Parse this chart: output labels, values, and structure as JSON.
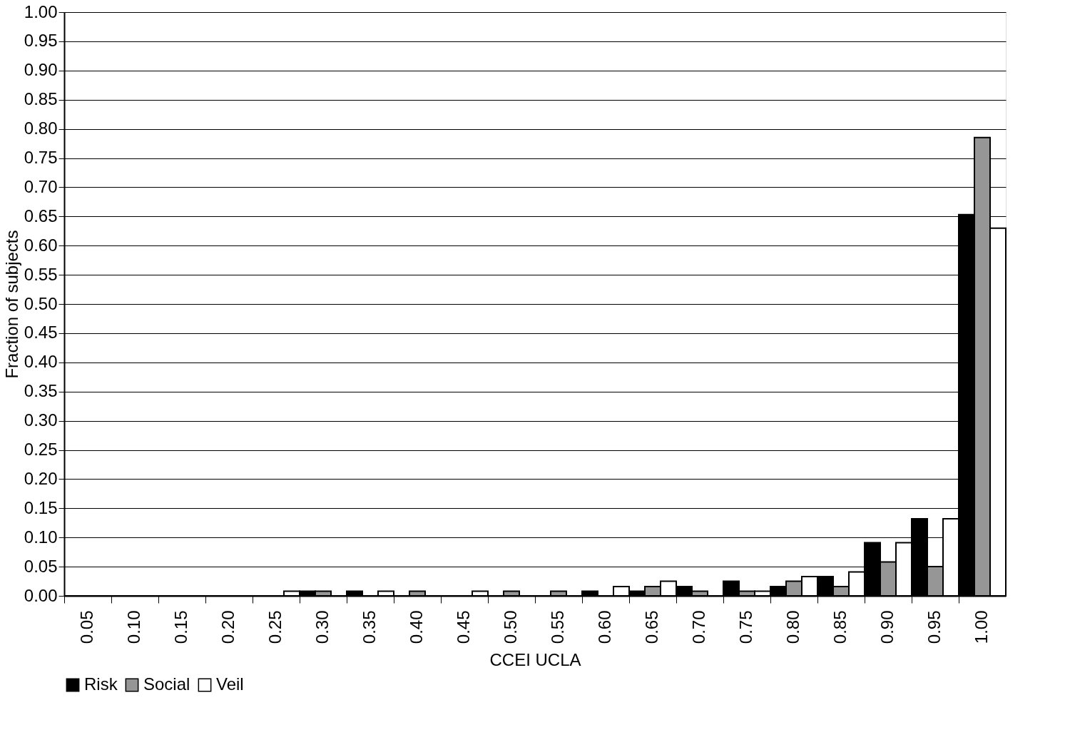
{
  "chart_data": {
    "type": "bar",
    "xlabel": "CCEI UCLA",
    "ylabel": "Fraction of subjects",
    "categories": [
      "0.05",
      "0.10",
      "0.15",
      "0.20",
      "0.25",
      "0.30",
      "0.35",
      "0.40",
      "0.45",
      "0.50",
      "0.55",
      "0.60",
      "0.65",
      "0.70",
      "0.75",
      "0.80",
      "0.85",
      "0.90",
      "0.95",
      "1.00"
    ],
    "series": [
      {
        "name": "Risk",
        "color": "#000000",
        "values": [
          0,
          0,
          0,
          0,
          0,
          0.008,
          0.008,
          0,
          0,
          0,
          0,
          0.008,
          0.008,
          0.016,
          0.025,
          0.016,
          0.033,
          0.091,
          0.132,
          0.653
        ]
      },
      {
        "name": "Social",
        "color": "#969696",
        "values": [
          0,
          0,
          0,
          0,
          0,
          0.008,
          0,
          0.008,
          0,
          0.008,
          0.008,
          0,
          0.016,
          0.008,
          0.008,
          0.025,
          0.016,
          0.058,
          0.05,
          0.785
        ]
      },
      {
        "name": "Veil",
        "color": "#ffffff",
        "values": [
          0,
          0,
          0,
          0,
          0.008,
          0,
          0.008,
          0,
          0.008,
          0,
          0,
          0.016,
          0.025,
          0,
          0.008,
          0.033,
          0.041,
          0.091,
          0.132,
          0.63
        ]
      }
    ],
    "ylim": [
      0,
      1
    ],
    "yticks": [
      {
        "value": 0,
        "label": "0.00"
      },
      0.05,
      {
        "value": 0.1,
        "label": "0.10"
      },
      0.15,
      {
        "value": 0.2,
        "label": "0.20"
      },
      0.25,
      {
        "value": 0.3,
        "label": "0.30"
      },
      0.35,
      {
        "value": 0.4,
        "label": "0.40"
      },
      0.45,
      {
        "value": 0.5,
        "label": "0.50"
      },
      0.55,
      {
        "value": 0.6,
        "label": "0.60"
      },
      0.65,
      {
        "value": 0.7,
        "label": "0.70"
      },
      0.75,
      {
        "value": 0.8,
        "label": "0.80"
      },
      0.85,
      {
        "value": 0.9,
        "label": "0.90"
      },
      0.95,
      {
        "value": 1,
        "label": "1.00"
      }
    ],
    "grid": "y",
    "legend": "bottom"
  }
}
